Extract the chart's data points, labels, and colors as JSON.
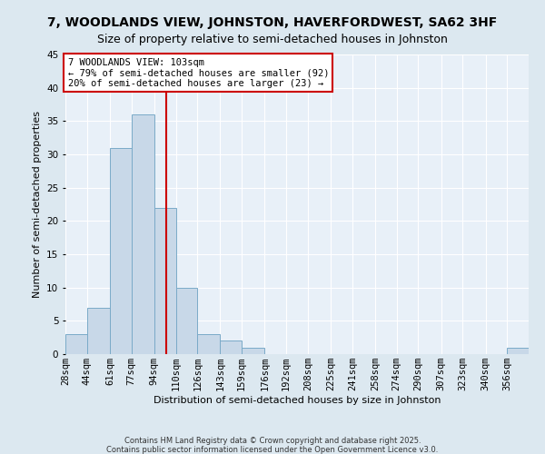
{
  "title": "7, WOODLANDS VIEW, JOHNSTON, HAVERFORDWEST, SA62 3HF",
  "subtitle": "Size of property relative to semi-detached houses in Johnston",
  "xlabel": "Distribution of semi-detached houses by size in Johnston",
  "ylabel": "Number of semi-detached properties",
  "bin_labels": [
    "28sqm",
    "44sqm",
    "61sqm",
    "77sqm",
    "94sqm",
    "110sqm",
    "126sqm",
    "143sqm",
    "159sqm",
    "176sqm",
    "192sqm",
    "208sqm",
    "225sqm",
    "241sqm",
    "258sqm",
    "274sqm",
    "290sqm",
    "307sqm",
    "323sqm",
    "340sqm",
    "356sqm"
  ],
  "bin_edges": [
    28,
    44,
    61,
    77,
    94,
    110,
    126,
    143,
    159,
    176,
    192,
    208,
    225,
    241,
    258,
    274,
    290,
    307,
    323,
    340,
    356,
    372
  ],
  "counts": [
    3,
    7,
    31,
    36,
    22,
    10,
    3,
    2,
    1,
    0,
    0,
    0,
    0,
    0,
    0,
    0,
    0,
    0,
    0,
    0,
    1
  ],
  "bar_color": "#c8d8e8",
  "bar_edge_color": "#7aaac8",
  "vline_x": 103,
  "vline_color": "#cc0000",
  "annotation_title": "7 WOODLANDS VIEW: 103sqm",
  "annotation_line1": "← 79% of semi-detached houses are smaller (92)",
  "annotation_line2": "20% of semi-detached houses are larger (23) →",
  "annotation_box_edge": "#cc0000",
  "ylim": [
    0,
    45
  ],
  "yticks": [
    0,
    5,
    10,
    15,
    20,
    25,
    30,
    35,
    40,
    45
  ],
  "footer1": "Contains HM Land Registry data © Crown copyright and database right 2025.",
  "footer2": "Contains public sector information licensed under the Open Government Licence v3.0.",
  "bg_color": "#dce8f0",
  "plot_bg_color": "#e8f0f8",
  "grid_color": "#ffffff",
  "title_fontsize": 10,
  "subtitle_fontsize": 9,
  "axis_label_fontsize": 8,
  "tick_fontsize": 7.5,
  "footer_fontsize": 6.0
}
